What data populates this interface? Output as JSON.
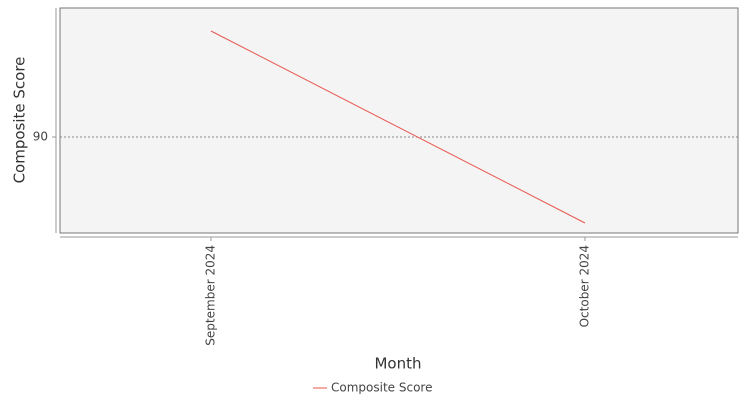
{
  "chart_data": {
    "type": "line",
    "x_label": "Month",
    "y_label": "Composite Score",
    "categories": [
      "September 2024",
      "October 2024"
    ],
    "series": [
      {
        "name": "Composite Score",
        "color": "#e8574f",
        "values": [
          92.65,
          87.85
        ]
      }
    ],
    "ylim": [
      87.6,
      93.225
    ],
    "yticks": [
      90
    ],
    "grid": true,
    "legend": "bottom"
  }
}
